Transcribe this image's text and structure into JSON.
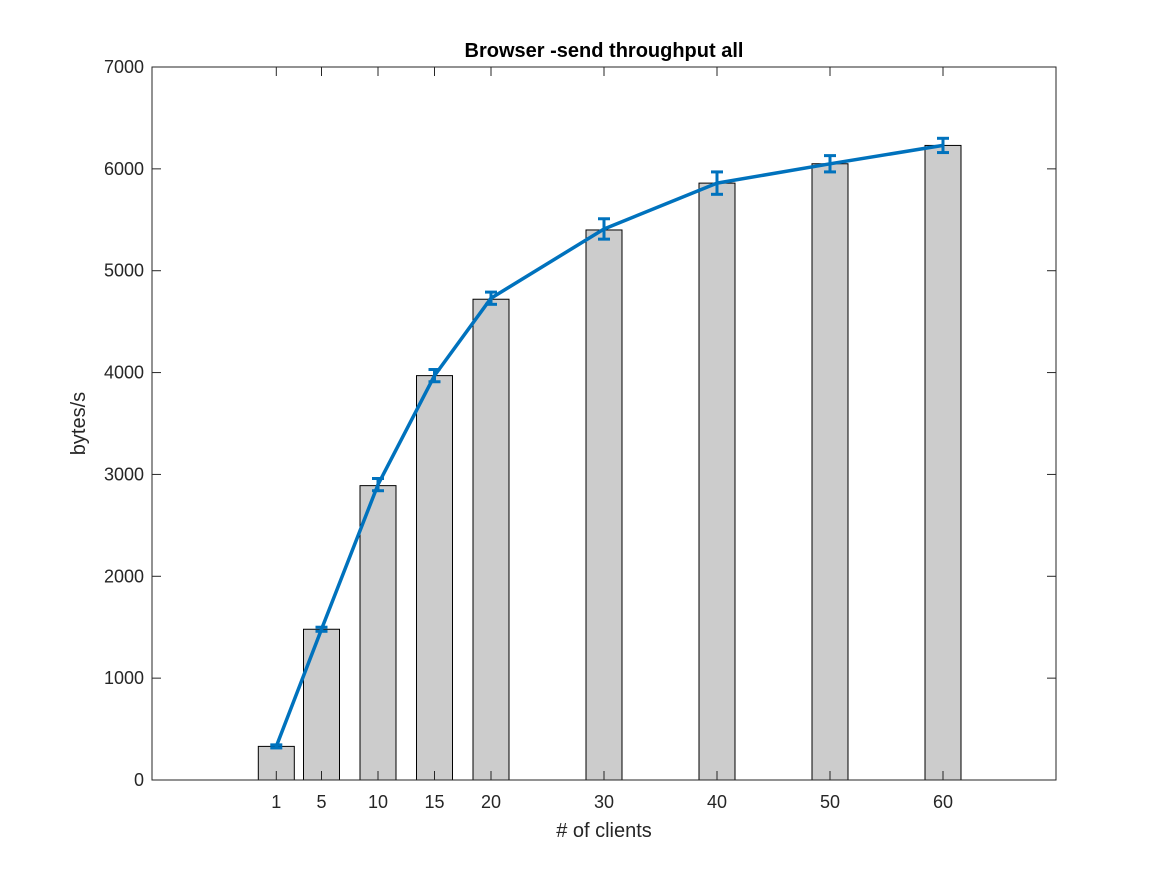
{
  "chart_data": {
    "type": "bar",
    "title": "Browser -send throughput all",
    "xlabel": "# of clients",
    "ylabel": "bytes/s",
    "x": [
      1,
      5,
      10,
      15,
      20,
      30,
      40,
      50,
      60
    ],
    "x_tick_labels": [
      "1",
      "5",
      "10",
      "15",
      "20",
      "30",
      "40",
      "50",
      "60"
    ],
    "xlim": [
      -10,
      70
    ],
    "ylim": [
      0,
      7000
    ],
    "y_ticks": [
      0,
      1000,
      2000,
      3000,
      4000,
      5000,
      6000,
      7000
    ],
    "y_tick_labels": [
      "0",
      "1000",
      "2000",
      "3000",
      "4000",
      "5000",
      "6000",
      "7000"
    ],
    "grid": false,
    "series": [
      {
        "kind": "bar",
        "values": [
          330,
          1480,
          2890,
          3970,
          4720,
          5400,
          5860,
          6050,
          6230
        ],
        "color": "#cccccc"
      },
      {
        "kind": "line-errorbar",
        "values": [
          330,
          1480,
          2900,
          3970,
          4730,
          5410,
          5860,
          6050,
          6230
        ],
        "errors": [
          15,
          20,
          60,
          60,
          60,
          100,
          110,
          80,
          70
        ],
        "color": "#0072bd"
      }
    ]
  }
}
